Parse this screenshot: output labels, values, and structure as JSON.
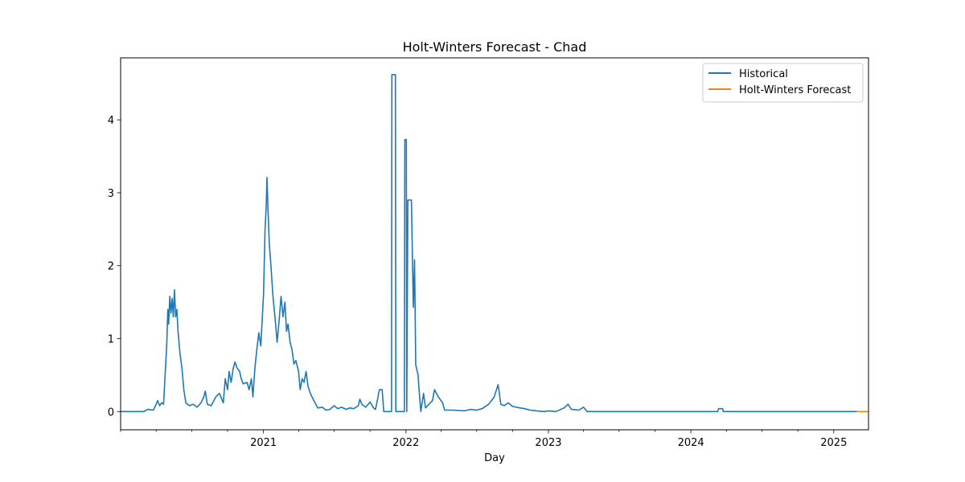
{
  "chart_data": {
    "type": "line",
    "title": "Holt-Winters Forecast - Chad",
    "xlabel": "Day",
    "ylabel": "",
    "x_range": [
      "2020-01-01",
      "2025-03-31"
    ],
    "ylim": [
      -0.25,
      4.85
    ],
    "grid": false,
    "legend_placement": "top-right",
    "x_ticks": [
      {
        "date": "2021-01-01",
        "label": "2021"
      },
      {
        "date": "2022-01-01",
        "label": "2022"
      },
      {
        "date": "2023-01-01",
        "label": "2023"
      },
      {
        "date": "2024-01-01",
        "label": "2024"
      },
      {
        "date": "2025-01-01",
        "label": "2025"
      }
    ],
    "y_ticks": [
      0,
      1,
      2,
      3,
      4
    ],
    "series": [
      {
        "name": "Historical",
        "color": "#1f77b4",
        "points": [
          [
            "2020-01-01",
            0
          ],
          [
            "2020-03-01",
            0
          ],
          [
            "2020-03-10",
            0.03
          ],
          [
            "2020-03-25",
            0.02
          ],
          [
            "2020-04-05",
            0.15
          ],
          [
            "2020-04-10",
            0.08
          ],
          [
            "2020-04-15",
            0.12
          ],
          [
            "2020-04-20",
            0.1
          ],
          [
            "2020-04-25",
            0.6
          ],
          [
            "2020-04-28",
            0.9
          ],
          [
            "2020-05-01",
            1.4
          ],
          [
            "2020-05-03",
            1.2
          ],
          [
            "2020-05-06",
            1.58
          ],
          [
            "2020-05-09",
            1.35
          ],
          [
            "2020-05-12",
            1.55
          ],
          [
            "2020-05-15",
            1.3
          ],
          [
            "2020-05-18",
            1.67
          ],
          [
            "2020-05-21",
            1.3
          ],
          [
            "2020-05-24",
            1.4
          ],
          [
            "2020-05-27",
            1.1
          ],
          [
            "2020-06-01",
            0.8
          ],
          [
            "2020-06-06",
            0.6
          ],
          [
            "2020-06-11",
            0.3
          ],
          [
            "2020-06-16",
            0.12
          ],
          [
            "2020-06-25",
            0.08
          ],
          [
            "2020-07-05",
            0.1
          ],
          [
            "2020-07-15",
            0.06
          ],
          [
            "2020-07-25",
            0.12
          ],
          [
            "2020-08-01",
            0.2
          ],
          [
            "2020-08-05",
            0.28
          ],
          [
            "2020-08-10",
            0.1
          ],
          [
            "2020-08-20",
            0.08
          ],
          [
            "2020-09-01",
            0.2
          ],
          [
            "2020-09-10",
            0.25
          ],
          [
            "2020-09-20",
            0.12
          ],
          [
            "2020-09-25",
            0.45
          ],
          [
            "2020-10-01",
            0.3
          ],
          [
            "2020-10-05",
            0.55
          ],
          [
            "2020-10-10",
            0.4
          ],
          [
            "2020-10-15",
            0.58
          ],
          [
            "2020-10-20",
            0.68
          ],
          [
            "2020-10-25",
            0.6
          ],
          [
            "2020-11-01",
            0.55
          ],
          [
            "2020-11-05",
            0.45
          ],
          [
            "2020-11-10",
            0.38
          ],
          [
            "2020-11-20",
            0.4
          ],
          [
            "2020-11-25",
            0.3
          ],
          [
            "2020-12-01",
            0.45
          ],
          [
            "2020-12-05",
            0.2
          ],
          [
            "2020-12-10",
            0.6
          ],
          [
            "2020-12-15",
            0.85
          ],
          [
            "2020-12-20",
            1.08
          ],
          [
            "2020-12-25",
            0.9
          ],
          [
            "2021-01-01",
            1.6
          ],
          [
            "2021-01-05",
            2.5
          ],
          [
            "2021-01-08",
            2.8
          ],
          [
            "2021-01-10",
            3.21
          ],
          [
            "2021-01-13",
            2.7
          ],
          [
            "2021-01-16",
            2.3
          ],
          [
            "2021-01-20",
            2.0
          ],
          [
            "2021-01-25",
            1.6
          ],
          [
            "2021-02-01",
            1.2
          ],
          [
            "2021-02-05",
            0.95
          ],
          [
            "2021-02-10",
            1.25
          ],
          [
            "2021-02-15",
            1.58
          ],
          [
            "2021-02-20",
            1.3
          ],
          [
            "2021-02-25",
            1.5
          ],
          [
            "2021-03-01",
            1.1
          ],
          [
            "2021-03-05",
            1.2
          ],
          [
            "2021-03-10",
            0.95
          ],
          [
            "2021-03-15",
            0.85
          ],
          [
            "2021-03-20",
            0.65
          ],
          [
            "2021-03-25",
            0.7
          ],
          [
            "2021-04-01",
            0.55
          ],
          [
            "2021-04-05",
            0.3
          ],
          [
            "2021-04-10",
            0.45
          ],
          [
            "2021-04-15",
            0.4
          ],
          [
            "2021-04-20",
            0.55
          ],
          [
            "2021-04-25",
            0.35
          ],
          [
            "2021-05-01",
            0.25
          ],
          [
            "2021-05-10",
            0.15
          ],
          [
            "2021-05-15",
            0.1
          ],
          [
            "2021-05-20",
            0.05
          ],
          [
            "2021-06-01",
            0.06
          ],
          [
            "2021-06-10",
            0.02
          ],
          [
            "2021-06-20",
            0.03
          ],
          [
            "2021-07-01",
            0.08
          ],
          [
            "2021-07-10",
            0.04
          ],
          [
            "2021-07-20",
            0.06
          ],
          [
            "2021-08-01",
            0.03
          ],
          [
            "2021-08-10",
            0.05
          ],
          [
            "2021-08-20",
            0.04
          ],
          [
            "2021-09-01",
            0.08
          ],
          [
            "2021-09-05",
            0.17
          ],
          [
            "2021-09-10",
            0.1
          ],
          [
            "2021-09-20",
            0.06
          ],
          [
            "2021-10-01",
            0.13
          ],
          [
            "2021-10-10",
            0.05
          ],
          [
            "2021-10-15",
            0.03
          ],
          [
            "2021-10-25",
            0.3
          ],
          [
            "2021-11-01",
            0.3
          ],
          [
            "2021-11-05",
            0
          ],
          [
            "2021-11-25",
            0
          ],
          [
            "2021-11-26",
            4.62
          ],
          [
            "2021-12-05",
            4.62
          ],
          [
            "2021-12-06",
            0
          ],
          [
            "2021-12-28",
            0
          ],
          [
            "2021-12-29",
            3.73
          ],
          [
            "2022-01-02",
            3.73
          ],
          [
            "2022-01-03",
            0
          ],
          [
            "2022-01-06",
            2.9
          ],
          [
            "2022-01-15",
            2.9
          ],
          [
            "2022-01-16",
            2.57
          ],
          [
            "2022-01-20",
            1.43
          ],
          [
            "2022-01-23",
            2.08
          ],
          [
            "2022-01-26",
            0.64
          ],
          [
            "2022-02-01",
            0.5
          ],
          [
            "2022-02-05",
            0.2
          ],
          [
            "2022-02-08",
            0
          ],
          [
            "2022-02-15",
            0.25
          ],
          [
            "2022-02-20",
            0.05
          ],
          [
            "2022-03-01",
            0.1
          ],
          [
            "2022-03-10",
            0.15
          ],
          [
            "2022-03-15",
            0.3
          ],
          [
            "2022-03-25",
            0.2
          ],
          [
            "2022-04-05",
            0.12
          ],
          [
            "2022-04-10",
            0.02
          ],
          [
            "2022-05-01",
            0.02
          ],
          [
            "2022-06-01",
            0.01
          ],
          [
            "2022-06-15",
            0.03
          ],
          [
            "2022-07-01",
            0.02
          ],
          [
            "2022-07-15",
            0.04
          ],
          [
            "2022-08-01",
            0.1
          ],
          [
            "2022-08-15",
            0.2
          ],
          [
            "2022-08-25",
            0.37
          ],
          [
            "2022-09-01",
            0.1
          ],
          [
            "2022-09-10",
            0.08
          ],
          [
            "2022-09-20",
            0.12
          ],
          [
            "2022-10-01",
            0.07
          ],
          [
            "2022-10-20",
            0.05
          ],
          [
            "2022-11-01",
            0.04
          ],
          [
            "2022-11-15",
            0.02
          ],
          [
            "2022-12-01",
            0.01
          ],
          [
            "2022-12-20",
            0
          ],
          [
            "2023-01-01",
            0.01
          ],
          [
            "2023-01-20",
            0
          ],
          [
            "2023-02-10",
            0.05
          ],
          [
            "2023-02-20",
            0.1
          ],
          [
            "2023-03-01",
            0.03
          ],
          [
            "2023-03-20",
            0.02
          ],
          [
            "2023-04-01",
            0.06
          ],
          [
            "2023-04-10",
            0
          ],
          [
            "2024-03-10",
            0
          ],
          [
            "2024-03-12",
            0.04
          ],
          [
            "2024-03-22",
            0.04
          ],
          [
            "2024-03-24",
            0
          ],
          [
            "2025-03-01",
            0
          ]
        ]
      },
      {
        "name": "Holt-Winters Forecast",
        "color": "#ff7f0e",
        "points": [
          [
            "2025-03-01",
            0
          ],
          [
            "2025-03-31",
            0
          ]
        ]
      }
    ]
  }
}
